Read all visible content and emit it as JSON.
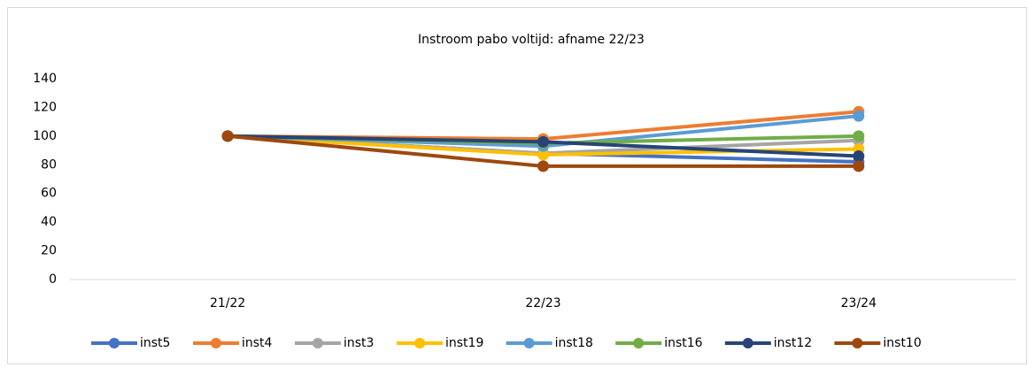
{
  "chart_data": {
    "type": "line",
    "title": "Instroom pabo voltijd: afname 22/23",
    "categories": [
      "21/22",
      "22/23",
      "23/24"
    ],
    "series": [
      {
        "name": "inst5",
        "color": "#4472c4",
        "values": [
          100,
          88,
          82
        ]
      },
      {
        "name": "inst4",
        "color": "#ed7d31",
        "values": [
          100,
          98,
          117
        ]
      },
      {
        "name": "inst3",
        "color": "#a5a5a5",
        "values": [
          100,
          88,
          97
        ]
      },
      {
        "name": "inst19",
        "color": "#ffc000",
        "values": [
          100,
          87,
          91
        ]
      },
      {
        "name": "inst18",
        "color": "#5b9bd5",
        "values": [
          100,
          93,
          114
        ]
      },
      {
        "name": "inst16",
        "color": "#70ad47",
        "values": [
          100,
          95,
          100
        ]
      },
      {
        "name": "inst12",
        "color": "#264478",
        "values": [
          100,
          96,
          86
        ]
      },
      {
        "name": "inst10",
        "color": "#9e480e",
        "values": [
          100,
          79,
          79
        ]
      }
    ],
    "ylim": [
      0,
      140
    ],
    "yticks": [
      0,
      20,
      40,
      60,
      80,
      100,
      120,
      140
    ],
    "grid": false,
    "legend": "bottom"
  }
}
